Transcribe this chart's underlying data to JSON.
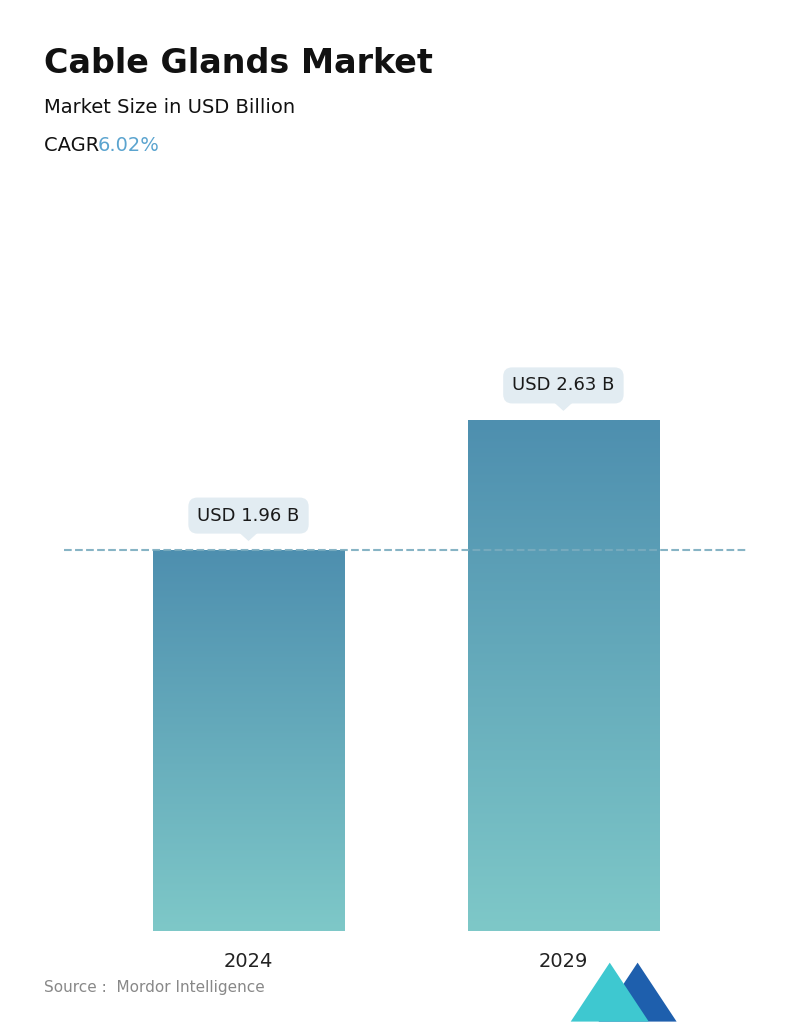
{
  "title": "Cable Glands Market",
  "subtitle": "Market Size in USD Billion",
  "cagr_label": "CAGR  ",
  "cagr_value": "6.02%",
  "cagr_color": "#5BA4CF",
  "categories": [
    "2024",
    "2029"
  ],
  "values": [
    1.96,
    2.63
  ],
  "bar_labels": [
    "USD 1.96 B",
    "USD 2.63 B"
  ],
  "bar_top_color": "#4E8FAF",
  "bar_bottom_color": "#7EC8C8",
  "bar_width": 0.28,
  "dashed_line_color": "#7AACBF",
  "dashed_line_value": 1.96,
  "source_text": "Source :  Mordor Intelligence",
  "background_color": "#FFFFFF",
  "title_fontsize": 24,
  "subtitle_fontsize": 14,
  "cagr_fontsize": 14,
  "tick_fontsize": 14,
  "label_fontsize": 13,
  "source_fontsize": 11,
  "ylim": [
    0,
    3.3
  ],
  "callout_bg": "#E2ECF2",
  "callout_text_color": "#1a1a1a",
  "x_positions": [
    0.27,
    0.73
  ]
}
